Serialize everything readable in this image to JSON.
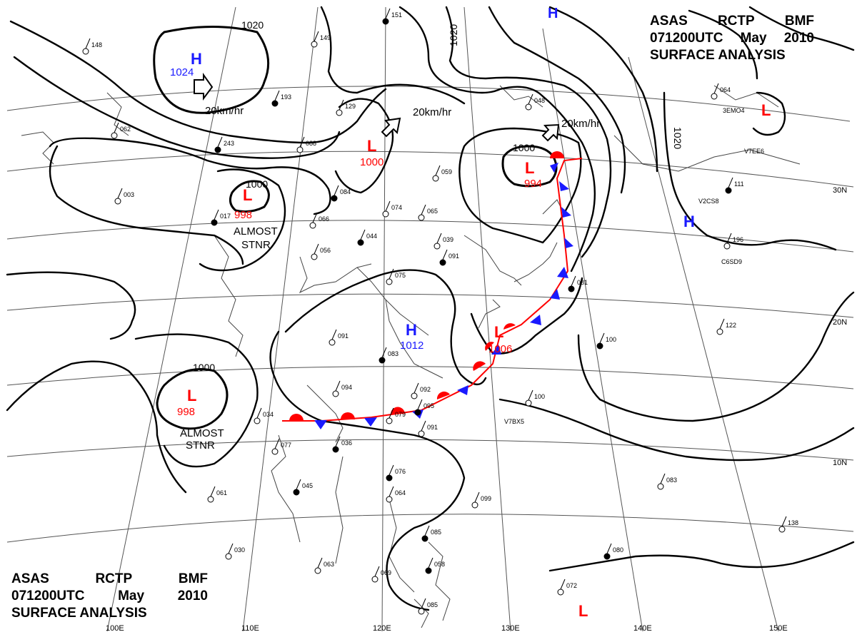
{
  "header": {
    "line1": [
      "ASAS",
      "RCTP",
      "BMF"
    ],
    "line2": [
      "071200UTC",
      "May",
      "2010"
    ],
    "line3": "SURFACE ANALYSIS"
  },
  "colors": {
    "isobar": "#000000",
    "high": "#1a1aff",
    "low": "#ff0000",
    "grid": "#555555",
    "coast": "#444444"
  },
  "pressure_systems": [
    {
      "type": "H",
      "value": "1024"
    },
    {
      "type": "L",
      "value": "998"
    },
    {
      "type": "L",
      "value": "1000"
    },
    {
      "type": "L",
      "value": "994"
    },
    {
      "type": "L",
      "value": "998"
    },
    {
      "type": "H",
      "value": "1012"
    },
    {
      "type": "L",
      "value": "1006"
    },
    {
      "type": "H",
      "value": ""
    },
    {
      "type": "H",
      "value": ""
    },
    {
      "type": "L",
      "value": ""
    },
    {
      "type": "L",
      "value": ""
    }
  ],
  "isobar_labels": [
    "1020",
    "1020",
    "1020",
    "1000",
    "1000",
    "1000"
  ],
  "motion_labels": [
    "20km/hr",
    "20km/hr",
    "20km/hr"
  ],
  "stationary_notes": [
    {
      "line1": "ALMOST",
      "line2": "STNR"
    },
    {
      "line1": "ALMOST",
      "line2": "STNR"
    }
  ],
  "longitude_labels": [
    "100E",
    "110E",
    "120E",
    "130E",
    "140E",
    "150E"
  ],
  "latitude_labels": [
    "30N",
    "20N",
    "10N"
  ],
  "ship_callsigns": [
    "3EMO4",
    "V7EE6",
    "V2CS8",
    "C6SD9",
    "V7BX5"
  ],
  "station_numbers": [
    "151",
    "148",
    "149",
    "193",
    "129",
    "088",
    "243",
    "062",
    "003",
    "017",
    "066",
    "056",
    "084",
    "074",
    "065",
    "044",
    "039",
    "059",
    "091",
    "075",
    "091",
    "083",
    "094",
    "092",
    "095",
    "079",
    "091",
    "036",
    "077",
    "034",
    "045",
    "061",
    "030",
    "076",
    "064",
    "099",
    "085",
    "063",
    "069",
    "058",
    "085",
    "072",
    "080",
    "083",
    "100",
    "100",
    "122",
    "138",
    "081",
    "048",
    "064",
    "111",
    "196"
  ]
}
